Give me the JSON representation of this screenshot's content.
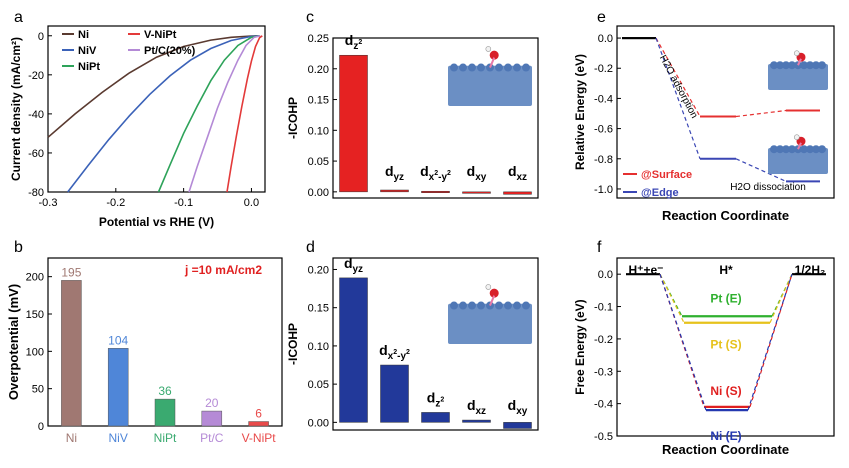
{
  "chart_data": [
    {
      "panel": "a",
      "type": "line",
      "xlabel": "Potential vs RHE (V)",
      "ylabel": "Current density (mA/cm²)",
      "xlim": [
        -0.3,
        0.02
      ],
      "ylim": [
        -80,
        5
      ],
      "xticks": [
        "-0.3",
        "-0.2",
        "-0.1",
        "0.0"
      ],
      "yticks": [
        "0",
        "-20",
        "-40",
        "-60",
        "-80"
      ],
      "series": [
        {
          "name": "Ni",
          "color": "#5a3a30",
          "x": [
            -0.3,
            -0.26,
            -0.22,
            -0.18,
            -0.14,
            -0.1,
            -0.06,
            -0.03,
            0.0,
            0.01
          ],
          "y": [
            -52,
            -40,
            -29,
            -19,
            -11,
            -5.5,
            -2.2,
            -0.8,
            -0.1,
            0
          ]
        },
        {
          "name": "NiV",
          "color": "#3b62b8",
          "x": [
            -0.271,
            -0.24,
            -0.21,
            -0.18,
            -0.15,
            -0.12,
            -0.09,
            -0.06,
            -0.03,
            0.0,
            0.012
          ],
          "y": [
            -80,
            -66,
            -53,
            -41,
            -30,
            -20.5,
            -12.5,
            -6.5,
            -2.4,
            -0.3,
            0
          ]
        },
        {
          "name": "NiPt",
          "color": "#2ea35a",
          "x": [
            -0.137,
            -0.12,
            -0.1,
            -0.08,
            -0.06,
            -0.04,
            -0.02,
            0.0,
            0.012
          ],
          "y": [
            -80,
            -66,
            -50,
            -36,
            -23,
            -12.5,
            -5,
            -0.8,
            0
          ]
        },
        {
          "name": "Pt/C(20%)",
          "color": "#b48ad6",
          "x": [
            -0.092,
            -0.08,
            -0.065,
            -0.05,
            -0.035,
            -0.02,
            -0.008,
            0.004,
            0.013
          ],
          "y": [
            -80,
            -67,
            -52,
            -37,
            -24,
            -12.5,
            -5,
            -0.8,
            0
          ]
        },
        {
          "name": "V-NiPt",
          "color": "#e33a3a",
          "x": [
            -0.036,
            -0.03,
            -0.022,
            -0.014,
            -0.006,
            0.0,
            0.006,
            0.012,
            0.016
          ],
          "y": [
            -80,
            -67,
            -51,
            -36,
            -22,
            -13,
            -5.5,
            -1,
            0
          ]
        }
      ]
    },
    {
      "panel": "b",
      "type": "bar",
      "ylabel": "Overpotential (mV)",
      "ylim": [
        0,
        225
      ],
      "yticks": [
        "0",
        "50",
        "100",
        "150",
        "200"
      ],
      "annotation": "j =10 mA/cm2",
      "categories": [
        "Ni",
        "NiV",
        "NiPt",
        "Pt/C",
        "V-NiPt"
      ],
      "values": [
        195,
        104,
        36,
        20,
        6
      ],
      "colors": [
        "#a07872",
        "#4f86d8",
        "#3aaa70",
        "#b58ad6",
        "#e84a4a"
      ]
    },
    {
      "panel": "c",
      "type": "bar",
      "ylabel": "-ICOHP",
      "ylim": [
        -0.01,
        0.25
      ],
      "yticks": [
        "0.00",
        "0.05",
        "0.10",
        "0.15",
        "0.20",
        "0.25"
      ],
      "categories": [
        "dz2",
        "dyz",
        "dx2-y2",
        "dxy",
        "dxz"
      ],
      "values": [
        0.222,
        0.003,
        0.001,
        0.0,
        -0.004
      ],
      "color": "#e52222"
    },
    {
      "panel": "d",
      "type": "bar",
      "ylabel": "-ICOHP",
      "ylim": [
        -0.01,
        0.215
      ],
      "yticks": [
        "0.00",
        "0.05",
        "0.10",
        "0.15",
        "0.20"
      ],
      "categories": [
        "dyz",
        "dx2-y2",
        "dz2",
        "dxz",
        "dxy"
      ],
      "values": [
        0.189,
        0.075,
        0.013,
        0.003,
        -0.008
      ],
      "color": "#22399a"
    },
    {
      "panel": "e",
      "type": "line",
      "xlabel": "Reaction Coordinate",
      "ylabel": "Relative Energy (eV)",
      "ylim": [
        -1.06,
        0.08
      ],
      "yticks": [
        "0.0",
        "-0.2",
        "-0.4",
        "-0.6",
        "-0.8",
        "-1.0"
      ],
      "annotations": [
        "H2O adsorption",
        "H2O dissociation"
      ],
      "series": [
        {
          "name": "@Surface",
          "color": "#e53030",
          "levels": [
            0.0,
            -0.52,
            -0.48
          ]
        },
        {
          "name": "@Edge",
          "color": "#3a46b4",
          "levels": [
            0.0,
            -0.8,
            -0.95
          ]
        }
      ]
    },
    {
      "panel": "f",
      "type": "line",
      "xlabel": "Reaction Coordinate",
      "ylabel": "Free Energy (eV)",
      "ylim": [
        -0.5,
        0.05
      ],
      "yticks": [
        "0.0",
        "-0.1",
        "-0.2",
        "-0.3",
        "-0.4",
        "-0.5"
      ],
      "states": [
        "H⁺+e⁻",
        "H*",
        "1/2H₂"
      ],
      "series": [
        {
          "name": "Pt (E)",
          "color": "#2fb02f",
          "value": -0.13
        },
        {
          "name": "Pt (S)",
          "color": "#e6c21c",
          "value": -0.15
        },
        {
          "name": "Ni (S)",
          "color": "#e02020",
          "value": -0.41
        },
        {
          "name": "Ni (E)",
          "color": "#2438b0",
          "value": -0.42
        }
      ]
    }
  ]
}
